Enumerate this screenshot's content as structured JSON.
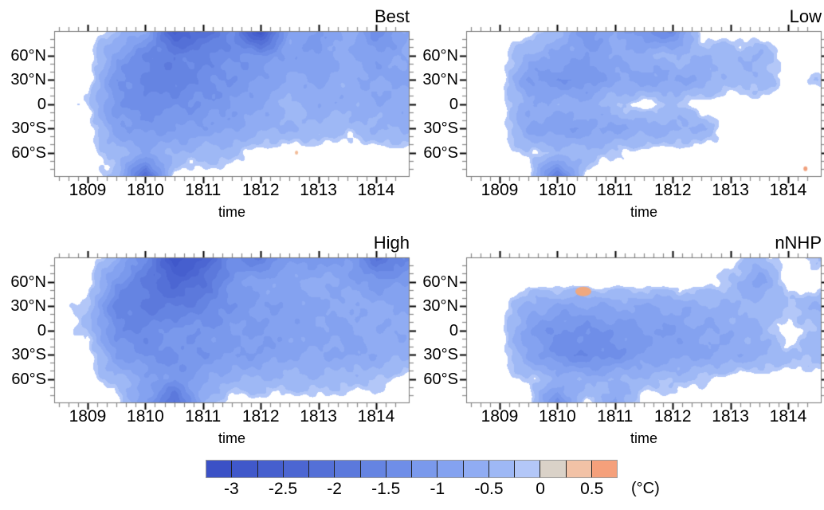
{
  "figure": {
    "background": "#ffffff"
  },
  "chart_data": {
    "type": "heatmap",
    "title": "",
    "xlabel": "time",
    "unit_label": "(°C)",
    "x_range": [
      1808.42,
      1814.58
    ],
    "x_major_ticks": [
      1809,
      1810,
      1811,
      1812,
      1813,
      1814
    ],
    "x_minor_step_years": 0.16667,
    "lat_range": [
      -90,
      90
    ],
    "lat_major_tick_values": [
      60,
      30,
      0,
      -30,
      -60
    ],
    "lat_major_tick_labels": [
      "60°N",
      "30°N",
      "0",
      "30°S",
      "60°S"
    ],
    "lat_minor_step_deg": 10,
    "grid_times": [
      1808.5,
      1809,
      1809.5,
      1810,
      1810.5,
      1811,
      1811.5,
      1812,
      1812.5,
      1813,
      1813.5,
      1814,
      1814.5
    ],
    "grid_lats": [
      90,
      60,
      30,
      0,
      -30,
      -60,
      -90
    ],
    "panels": [
      {
        "title": "Best",
        "anomaly_grid_degC": [
          [
            0,
            0,
            -0.3,
            -0.8,
            -2.6,
            -2.2,
            -1.5,
            -3.0,
            -0.8,
            -1.1,
            -0.6,
            -1.4,
            -0.8
          ],
          [
            0,
            0,
            -0.9,
            -1.5,
            -1.7,
            -1.5,
            -1.3,
            -1.2,
            -0.9,
            -1.0,
            -0.6,
            -1.0,
            -0.7
          ],
          [
            0,
            0,
            -1.2,
            -1.6,
            -1.7,
            -1.4,
            -1.2,
            -1.0,
            -0.7,
            -0.8,
            -0.6,
            -0.8,
            -0.8
          ],
          [
            0,
            -0.2,
            -1.2,
            -1.4,
            -1.3,
            -1.2,
            -1.0,
            -0.8,
            -0.4,
            -0.7,
            -0.6,
            -0.7,
            -0.6
          ],
          [
            0,
            0,
            -0.9,
            -1.1,
            -1.0,
            -0.9,
            -0.8,
            -0.6,
            -0.5,
            -0.4,
            -0.3,
            -0.5,
            -0.6
          ],
          [
            0,
            0,
            -0.4,
            -0.7,
            -0.5,
            -0.4,
            -0.3,
            0,
            0,
            0,
            0,
            0,
            0
          ],
          [
            0,
            0,
            -0.3,
            -2.4,
            0,
            0,
            0,
            0,
            0,
            0,
            0,
            0,
            0
          ]
        ],
        "warm_spots": [
          {
            "time": 1812.62,
            "lat": -60,
            "rx": 2,
            "ry": 2.5,
            "color": "#f2bb97"
          }
        ]
      },
      {
        "title": "Low",
        "anomaly_grid_degC": [
          [
            0,
            0,
            0,
            -0.4,
            -1.2,
            -0.7,
            -1.3,
            -1.5,
            0,
            0,
            0,
            0,
            0
          ],
          [
            0,
            0,
            -0.6,
            -0.8,
            -1.0,
            -0.7,
            -0.6,
            -0.4,
            -0.5,
            -0.4,
            -0.5,
            0,
            0
          ],
          [
            0,
            0,
            -1.0,
            -1.2,
            -1.2,
            -0.8,
            -0.9,
            -0.8,
            -0.7,
            -0.3,
            -0.5,
            0,
            -0.2
          ],
          [
            0,
            0,
            -0.7,
            -0.6,
            -0.6,
            -0.3,
            0,
            -0.3,
            0,
            0,
            0,
            0,
            0
          ],
          [
            0,
            0,
            -0.8,
            -1.0,
            -0.9,
            -0.8,
            -0.7,
            -0.6,
            -0.5,
            0,
            0,
            0,
            0
          ],
          [
            0,
            0,
            -0.2,
            -0.3,
            -0.4,
            -0.2,
            0,
            0,
            0,
            0,
            0,
            0,
            0
          ],
          [
            0,
            0,
            0,
            -2.0,
            0,
            0,
            0,
            0,
            0,
            0,
            0,
            0,
            0
          ]
        ],
        "warm_spots": [
          {
            "time": 1814.3,
            "lat": -80,
            "rx": 2.5,
            "ry": 3,
            "color": "#f0a07c"
          }
        ]
      },
      {
        "title": "High",
        "anomaly_grid_degC": [
          [
            0,
            0,
            -0.5,
            -1.5,
            -2.9,
            -2.5,
            -1.4,
            -1.8,
            -1.0,
            -1.2,
            -1.0,
            -2.0,
            -1.6
          ],
          [
            0,
            0,
            -1.2,
            -1.8,
            -2.4,
            -2.0,
            -1.2,
            -0.8,
            -0.8,
            -0.6,
            -0.8,
            -1.2,
            -1.0
          ],
          [
            0,
            -0.3,
            -1.6,
            -1.8,
            -1.8,
            -1.6,
            -1.2,
            -1.0,
            -0.9,
            -0.8,
            -0.7,
            -0.6,
            -0.8
          ],
          [
            0,
            -0.3,
            -1.4,
            -1.5,
            -1.1,
            -1.2,
            -1.0,
            -1.0,
            -0.9,
            -0.8,
            -0.8,
            -0.7,
            -0.7
          ],
          [
            0,
            0,
            -1.0,
            -1.3,
            -1.3,
            -1.2,
            -1.0,
            -1.0,
            -0.8,
            -0.7,
            -0.8,
            -0.7,
            -0.6
          ],
          [
            0,
            0,
            -0.4,
            -0.8,
            -1.2,
            -0.8,
            -0.5,
            -0.5,
            -0.4,
            -0.5,
            -0.3,
            -0.3,
            0
          ],
          [
            0,
            0,
            0,
            -1.0,
            -2.2,
            -0.5,
            0,
            0,
            0,
            0,
            0,
            0,
            0
          ]
        ],
        "warm_spots": []
      },
      {
        "title": "nNHP",
        "anomaly_grid_degC": [
          [
            0,
            0,
            0,
            0,
            0,
            0,
            0,
            0,
            0,
            0,
            -0.4,
            0,
            -0.3
          ],
          [
            0,
            0,
            0,
            0,
            0,
            0,
            0,
            0,
            0,
            -0.3,
            -0.9,
            0,
            0
          ],
          [
            0,
            0,
            -0.6,
            -0.8,
            -0.8,
            -0.7,
            -0.8,
            -0.7,
            -0.6,
            -0.5,
            -0.4,
            -0.3,
            -0.5
          ],
          [
            0,
            0,
            -1.0,
            -1.3,
            -1.3,
            -1.2,
            -1.0,
            -1.0,
            -0.8,
            -0.7,
            -0.5,
            0,
            -0.3
          ],
          [
            0,
            0,
            -0.8,
            -1.3,
            -1.5,
            -1.3,
            -1.0,
            -0.9,
            -0.8,
            -0.7,
            -0.6,
            -0.3,
            -0.4
          ],
          [
            0,
            0,
            -0.2,
            -0.5,
            -0.6,
            -0.5,
            -0.4,
            -0.3,
            -0.2,
            0,
            0,
            0,
            0
          ],
          [
            0,
            0,
            0,
            -1.5,
            0,
            -0.8,
            0,
            0,
            0,
            0,
            0,
            0,
            0
          ]
        ],
        "warm_spots": [
          {
            "time": 1810.45,
            "lat": 48,
            "rx": 10,
            "ry": 6,
            "color": "#efa87f"
          }
        ]
      }
    ],
    "colorbar": {
      "value_min": -3.25,
      "value_max": 0.75,
      "step": 0.25,
      "tick_labels": [
        "-3",
        "-2.5",
        "-2",
        "-1.5",
        "-1",
        "-0.5",
        "0",
        "0.5"
      ],
      "colors": [
        "#3b51c6",
        "#4058ca",
        "#465fce",
        "#4c66d2",
        "#5470d7",
        "#5c79dc",
        "#6584e2",
        "#6f8ee8",
        "#7a99ec",
        "#84a2f0",
        "#90acf3",
        "#9eb8f5",
        "#b3c7f8",
        "#dad2c8",
        "#f2c2a6",
        "#f5a07b"
      ]
    }
  }
}
